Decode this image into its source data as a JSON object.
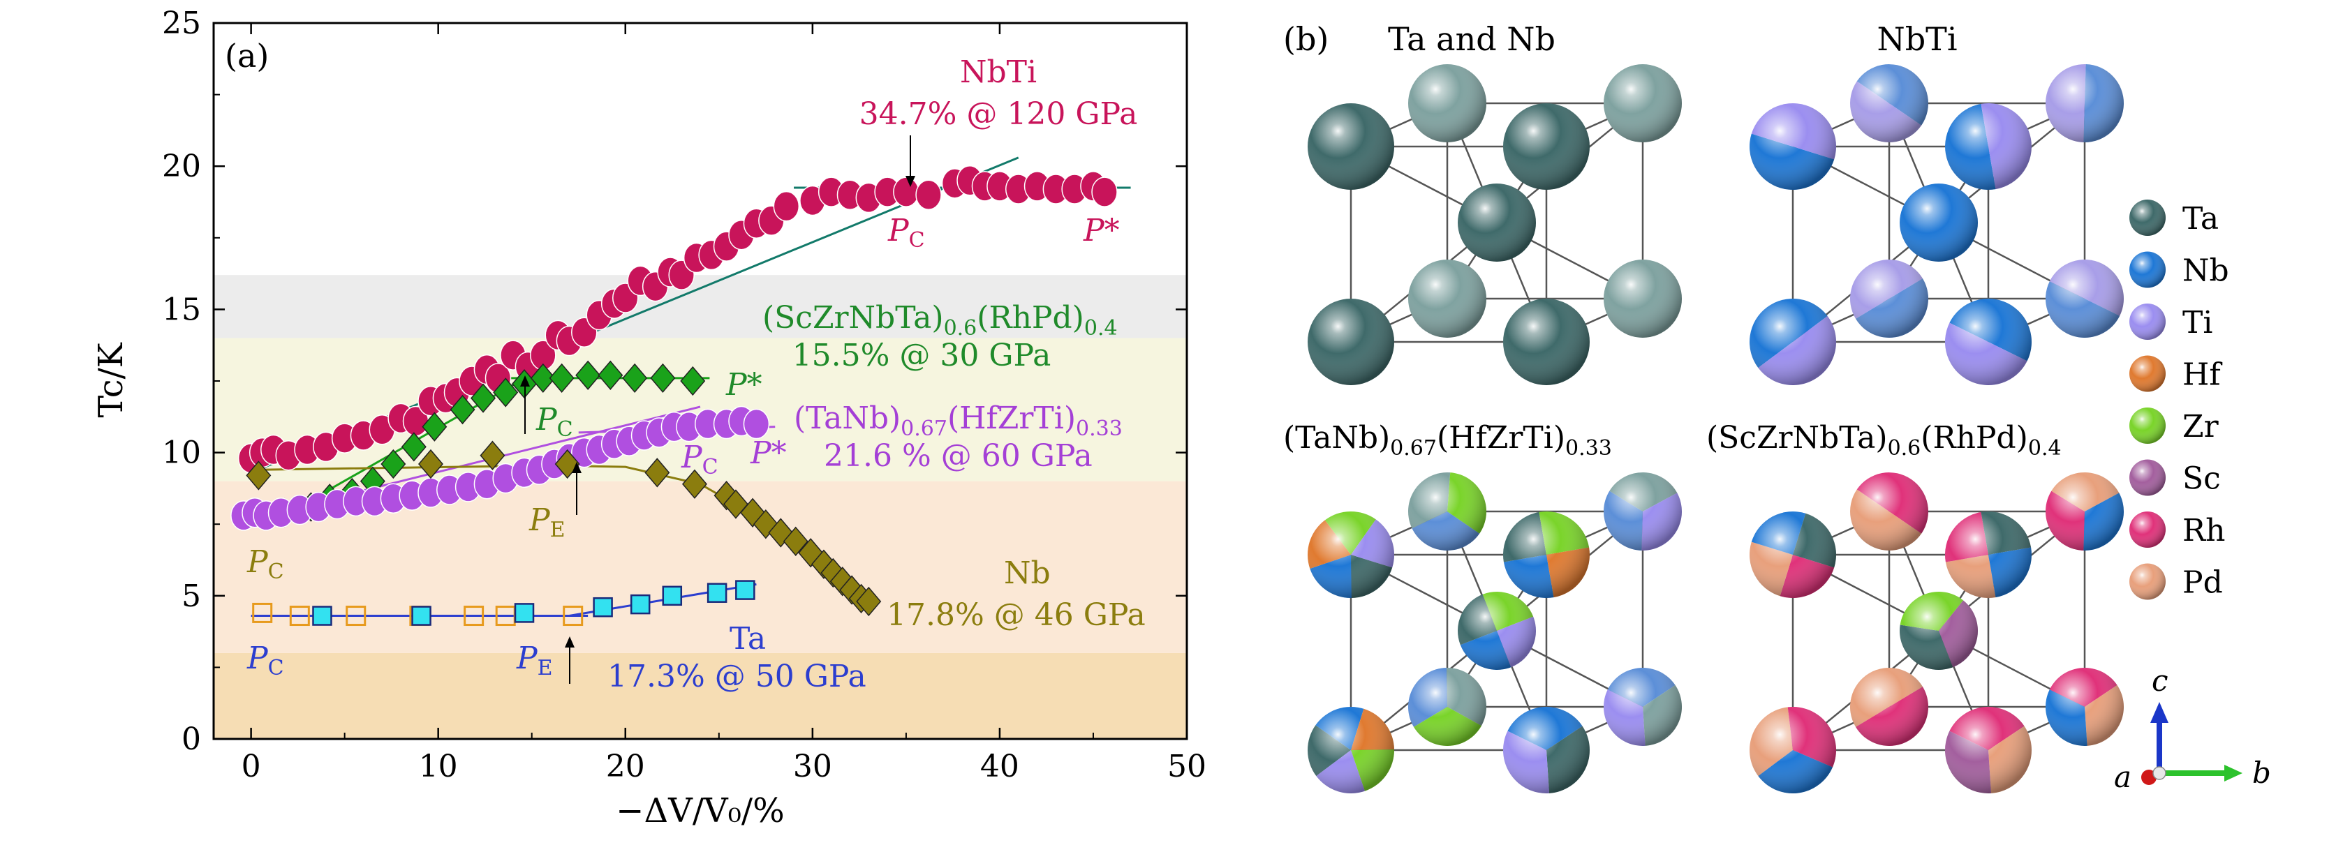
{
  "chart_data": [
    {
      "type": "scatter",
      "panel_label": "(a)",
      "xlabel": "−ΔV/V₀/%",
      "ylabel": "Tc/K",
      "xlim": [
        -2,
        50
      ],
      "ylim": [
        0,
        25
      ],
      "xticks": [
        0,
        10,
        20,
        30,
        40,
        50
      ],
      "yticks": [
        0,
        5,
        10,
        15,
        20,
        25
      ],
      "background_bands": [
        {
          "y": [
            0,
            3
          ],
          "color": "#f6ddb4"
        },
        {
          "y": [
            3,
            9
          ],
          "color": "#fbe8d6"
        },
        {
          "y": [
            9,
            14
          ],
          "color": "#f6f5df"
        },
        {
          "y": [
            14,
            16.2
          ],
          "color": "#ececec"
        }
      ],
      "series": [
        {
          "name": "NbTi",
          "color": "#c8145a",
          "marker": "circle",
          "x": [
            0,
            0.6,
            1.2,
            2,
            3,
            4,
            5,
            6,
            7,
            8,
            8.8,
            9.6,
            10.4,
            11,
            11.8,
            12.6,
            13.2,
            14,
            14.8,
            15.6,
            16.4,
            17,
            17.8,
            18.6,
            19.4,
            20,
            20.8,
            21.6,
            22.4,
            23,
            23.8,
            24.6,
            25.4,
            26.2,
            27,
            27.8,
            28.6,
            30,
            31,
            32,
            33,
            34,
            35,
            36.2,
            37.6,
            38.4,
            39.2,
            40,
            41,
            42,
            43,
            44,
            45,
            45.6
          ],
          "y": [
            9.8,
            10.0,
            10.1,
            9.9,
            10.1,
            10.2,
            10.5,
            10.6,
            10.8,
            11.2,
            11.1,
            11.8,
            11.9,
            12.1,
            12.5,
            12.9,
            12.6,
            13.4,
            13.0,
            13.4,
            14.1,
            13.9,
            14.2,
            14.8,
            15.2,
            15.4,
            16.0,
            15.8,
            16.3,
            16.2,
            16.8,
            16.9,
            17.2,
            17.6,
            18.0,
            18.1,
            18.6,
            18.8,
            19.1,
            19.0,
            18.9,
            19.1,
            19.1,
            19.0,
            19.4,
            19.5,
            19.3,
            19.3,
            19.2,
            19.3,
            19.2,
            19.2,
            19.3,
            19.1
          ],
          "fits": [
            [
              [
                0,
                9.3
              ],
              [
                41,
                20.3
              ]
            ],
            [
              [
                29,
                19.25
              ],
              [
                47,
                19.25
              ]
            ]
          ],
          "labels": [
            "NbTi",
            "34.7% @ 120 GPa"
          ],
          "markers": [
            "P",
            "C",
            "P*"
          ]
        },
        {
          "name": "(ScZrNbTa)0.6(RhPd)0.4",
          "color": "#1aa21a",
          "marker": "diamond",
          "x": [
            1.8,
            3.2,
            4.2,
            5.4,
            6.5,
            7.6,
            8.7,
            9.8,
            11.3,
            12.4,
            13.6,
            14.6,
            15.6,
            16.6,
            18,
            19.2,
            20.5,
            22,
            23.6
          ],
          "y": [
            7.9,
            8.1,
            8.4,
            8.6,
            9.0,
            9.6,
            10.2,
            10.9,
            11.5,
            11.9,
            12.1,
            12.4,
            12.6,
            12.6,
            12.7,
            12.7,
            12.6,
            12.6,
            12.5
          ],
          "fits": [
            [
              [
                1.2,
                7.6
              ],
              [
                16,
                13.1
              ]
            ],
            [
              [
                13,
                12.6
              ],
              [
                24.5,
                12.6
              ]
            ]
          ],
          "labels": [
            "(ScZrNbTa)",
            "0.6",
            "(RhPd)",
            "0.4",
            "15.5% @ 30 GPa"
          ],
          "markers": [
            "P",
            "C",
            "P*"
          ]
        },
        {
          "name": "(TaNb)0.67(HfZrTi)0.33",
          "color": "#b04fe0",
          "marker": "circle",
          "x": [
            -0.4,
            0.2,
            0.8,
            1.6,
            2.6,
            3.6,
            4.6,
            5.6,
            6.6,
            7.6,
            8.6,
            9.6,
            10.6,
            11.6,
            12.6,
            13.6,
            14.6,
            15.4,
            16.2,
            17,
            17.8,
            18.6,
            19.4,
            20.2,
            21,
            21.8,
            22.6,
            23.4,
            24.4,
            25.4,
            26.2,
            27
          ],
          "y": [
            7.8,
            7.9,
            7.8,
            7.9,
            8.0,
            8.1,
            8.2,
            8.3,
            8.3,
            8.4,
            8.5,
            8.6,
            8.7,
            8.8,
            8.9,
            9.1,
            9.3,
            9.4,
            9.6,
            9.8,
            10.0,
            10.1,
            10.3,
            10.4,
            10.6,
            10.7,
            10.9,
            10.9,
            11.0,
            11.0,
            11.1,
            11.0
          ],
          "fits": [
            [
              [
                0,
                7.7
              ],
              [
                24,
                11.6
              ]
            ],
            [
              [
                17.5,
                10.7
              ],
              [
                28,
                10.9
              ]
            ]
          ],
          "labels": [
            "(TaNb)",
            "0.67",
            "(HfZrTi)",
            "0.33",
            "21.6 % @ 60 GPa"
          ],
          "markers": [
            "P",
            "C",
            "P*"
          ]
        },
        {
          "name": "Nb",
          "color": "#8b7d0e",
          "marker": "diamond",
          "x": [
            0.4,
            9.6,
            12.9,
            16.9,
            21.7,
            23.7,
            25.4,
            25.9,
            26.8,
            27.5,
            28.3,
            29.1,
            29.9,
            30.6,
            31.1,
            31.6,
            32.1,
            32.6,
            33.0
          ],
          "y": [
            9.2,
            9.6,
            9.9,
            9.6,
            9.3,
            8.9,
            8.5,
            8.2,
            7.9,
            7.5,
            7.2,
            6.9,
            6.5,
            6.1,
            5.8,
            5.5,
            5.2,
            4.9,
            4.8
          ],
          "fits": [
            [
              [
                0.4,
                9.4
              ],
              [
                16,
                9.55
              ],
              [
                20,
                9.5
              ],
              [
                24,
                8.9
              ],
              [
                28,
                7.4
              ],
              [
                33.4,
                4.6
              ]
            ]
          ],
          "labels": [
            "Nb",
            "17.8% @ 46 GPa"
          ],
          "markers": [
            "P",
            "C",
            "P",
            "E"
          ]
        },
        {
          "name": "Ta (open)",
          "color": "#e79a1d",
          "marker": "square-open",
          "x": [
            0.6,
            2.6,
            5.6,
            9.0,
            11.9,
            13.6,
            17.2
          ],
          "y": [
            4.4,
            4.3,
            4.3,
            4.3,
            4.3,
            4.3,
            4.3
          ],
          "fits": []
        },
        {
          "name": "Ta",
          "color": "#2c3ecf",
          "marker": "square",
          "marker_fill": "#33e1f0",
          "x": [
            3.8,
            9.1,
            14.6,
            18.8,
            20.8,
            22.5,
            24.9,
            26.4
          ],
          "y": [
            4.3,
            4.3,
            4.4,
            4.6,
            4.7,
            5.0,
            5.1,
            5.2
          ],
          "fits": [
            [
              [
                0,
                4.3
              ],
              [
                18,
                4.3
              ]
            ],
            [
              [
                17,
                4.3
              ],
              [
                27,
                5.4
              ]
            ]
          ],
          "labels": [
            "Ta",
            "17.3% @ 50 GPa"
          ],
          "markers": [
            "P",
            "C",
            "P",
            "E"
          ]
        }
      ]
    },
    {
      "type": "diagram",
      "panel_label": "(b)",
      "titles": [
        "Ta and Nb",
        "NbTi",
        "(TaNb)",
        "0.67",
        "(HfZrTi)",
        "0.33",
        "(ScZrNbTa)",
        "0.6",
        "(RhPd)",
        "0.4"
      ],
      "legend": [
        {
          "label": "Ta",
          "color": "#3f6a6a"
        },
        {
          "label": "Nb",
          "color": "#1f78d6"
        },
        {
          "label": "Ti",
          "color": "#9b8ef0"
        },
        {
          "label": "Hf",
          "color": "#e07a30"
        },
        {
          "label": "Zr",
          "color": "#7ad42a"
        },
        {
          "label": "Sc",
          "color": "#a35f9e"
        },
        {
          "label": "Rh",
          "color": "#e0327a"
        },
        {
          "label": "Pd",
          "color": "#e8a07c"
        }
      ],
      "axes": {
        "a": "a",
        "b": "b",
        "c": "c"
      }
    }
  ]
}
